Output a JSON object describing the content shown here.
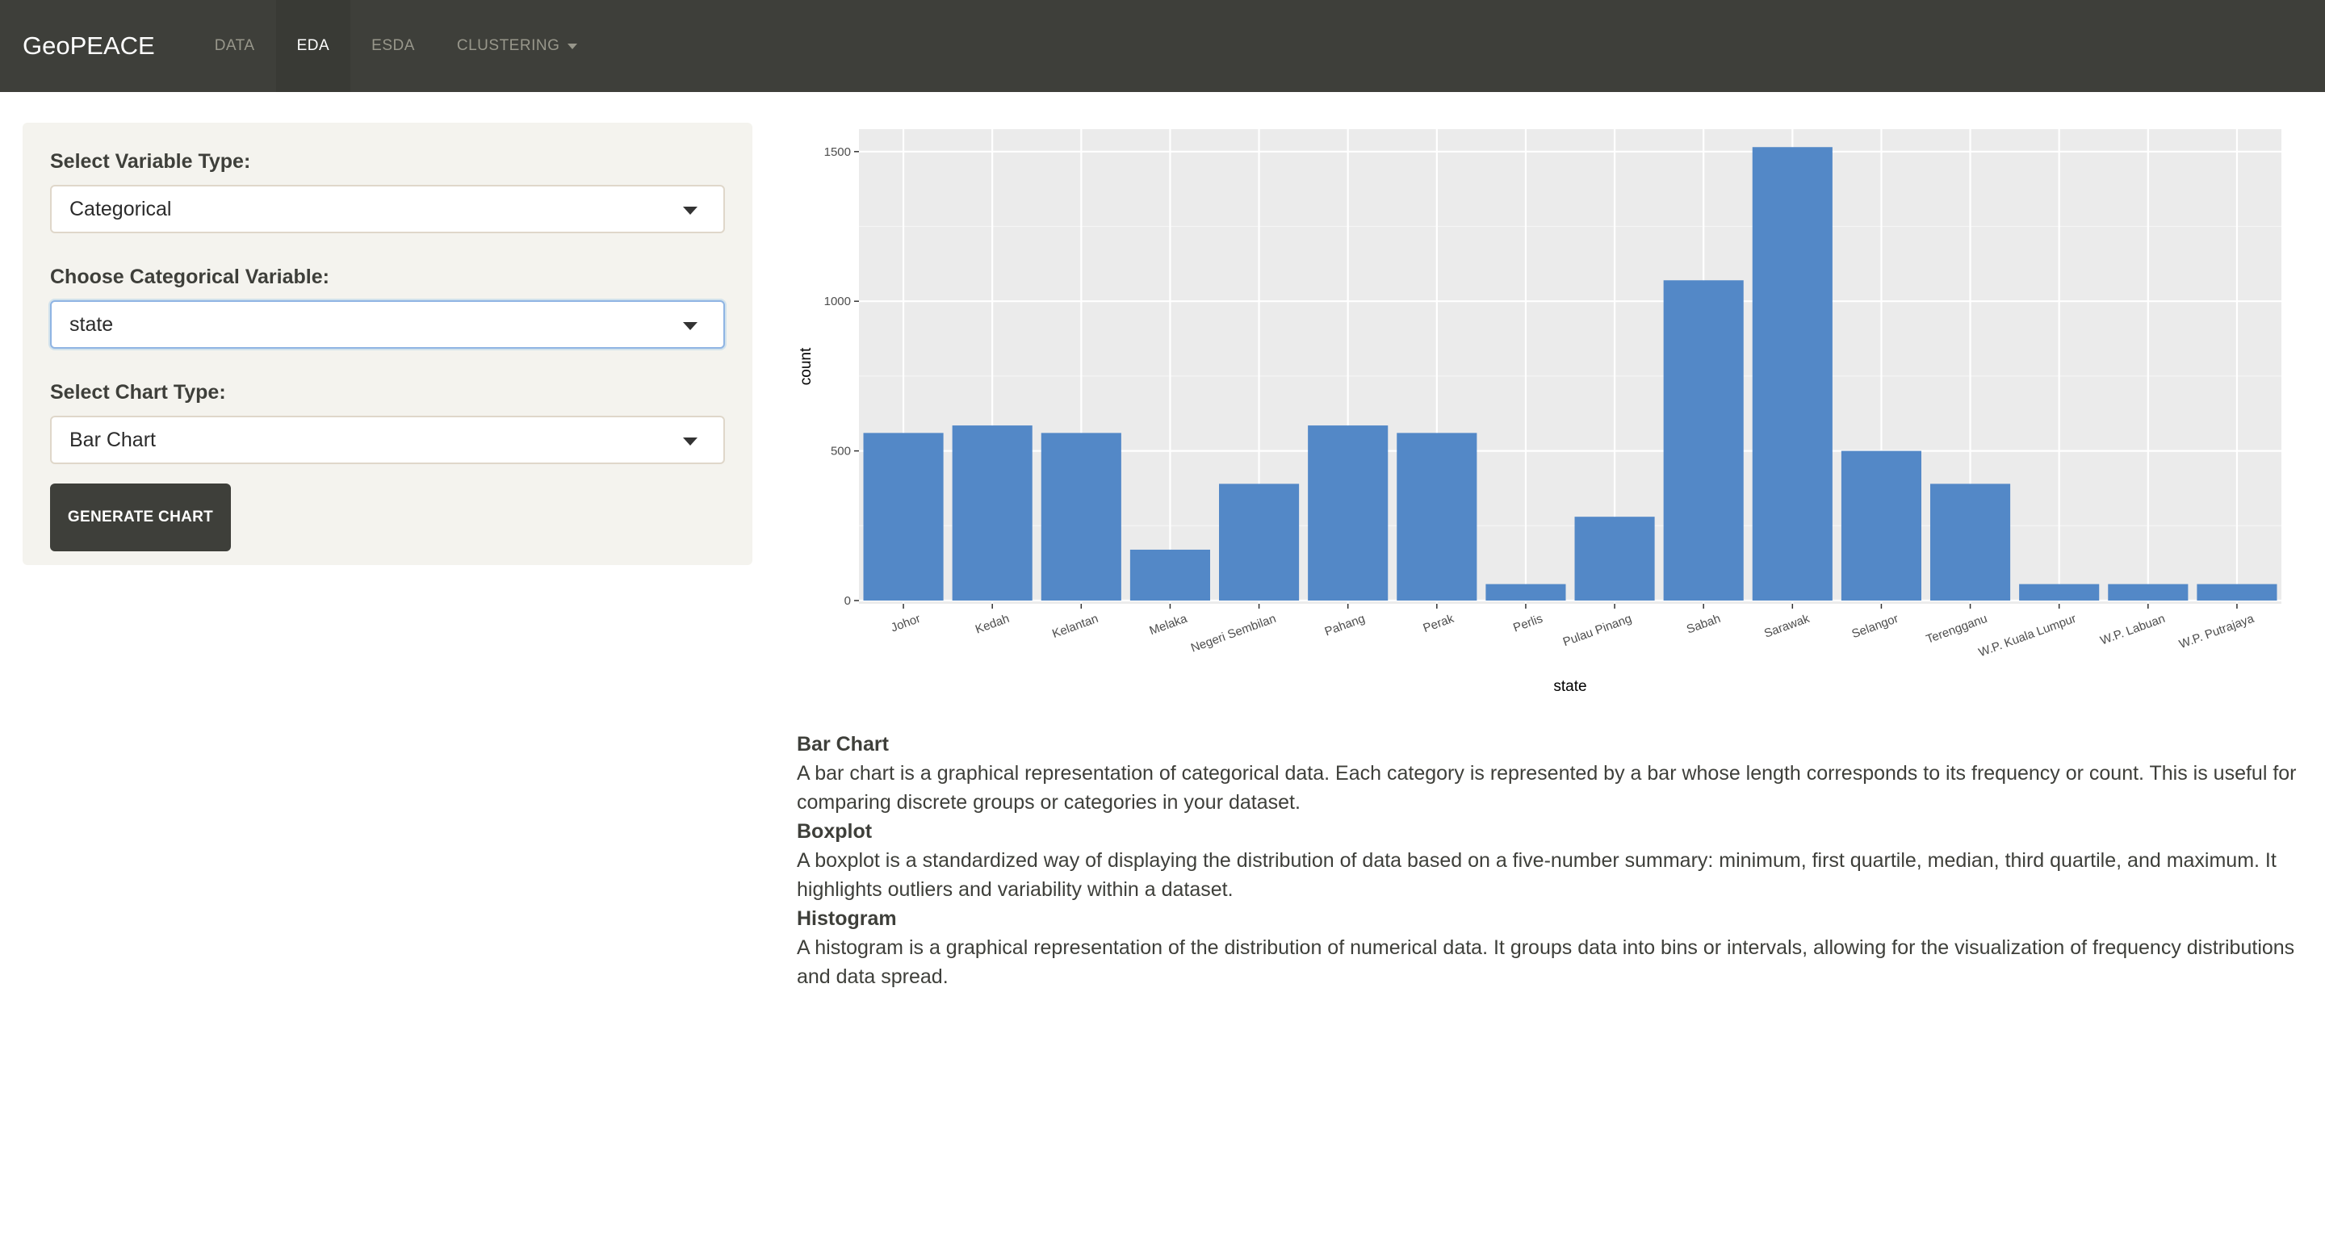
{
  "navbar": {
    "brand": "GeoPEACE",
    "items": [
      {
        "label": "DATA"
      },
      {
        "label": "EDA"
      },
      {
        "label": "ESDA"
      },
      {
        "label": "CLUSTERING"
      }
    ]
  },
  "sidebar": {
    "var_type_label": "Select Variable Type:",
    "var_type_value": "Categorical",
    "cat_var_label": "Choose Categorical Variable:",
    "cat_var_value": "state",
    "chart_type_label": "Select Chart Type:",
    "chart_type_value": "Bar Chart",
    "generate_button": "GENERATE CHART"
  },
  "chart_data": {
    "type": "bar",
    "categories": [
      "Johor",
      "Kedah",
      "Kelantan",
      "Melaka",
      "Negeri Sembilan",
      "Pahang",
      "Perak",
      "Perlis",
      "Pulau Pinang",
      "Sabah",
      "Sarawak",
      "Selangor",
      "Terengganu",
      "W.P. Kuala Lumpur",
      "W.P. Labuan",
      "W.P. Putrajaya"
    ],
    "values": [
      560,
      585,
      560,
      170,
      390,
      585,
      560,
      55,
      280,
      1070,
      1515,
      500,
      390,
      55,
      55,
      55
    ],
    "xlabel": "state",
    "ylabel": "count",
    "yticks": [
      0,
      500,
      1000,
      1500
    ],
    "ylim": [
      0,
      1575
    ],
    "bar_color": "#5388c7",
    "panel_color": "#ebebeb"
  },
  "descriptions": [
    {
      "title": "Bar Chart",
      "text": "A bar chart is a graphical representation of categorical data. Each category is represented by a bar whose length corresponds to its frequency or count. This is useful for comparing discrete groups or categories in your dataset."
    },
    {
      "title": "Boxplot",
      "text": "A boxplot is a standardized way of displaying the distribution of data based on a five-number summary: minimum, first quartile, median, third quartile, and maximum. It highlights outliers and variability within a dataset."
    },
    {
      "title": "Histogram",
      "text": "A histogram is a graphical representation of the distribution of numerical data. It groups data into bins or intervals, allowing for the visualization of frequency distributions and data spread."
    }
  ]
}
